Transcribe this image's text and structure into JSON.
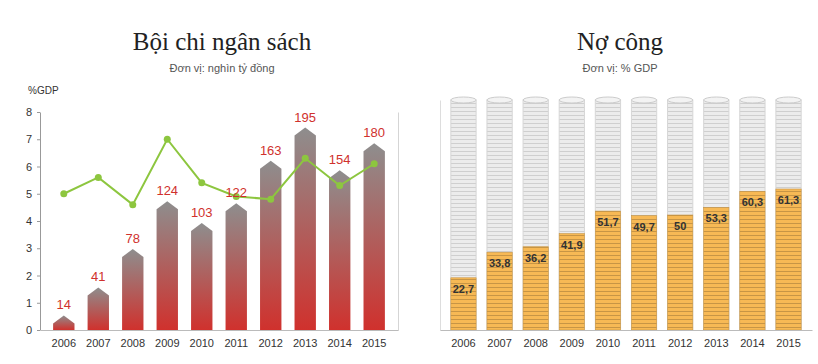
{
  "chart_data": [
    {
      "type": "bar",
      "title": "Bội chi ngân sách",
      "subtitle": "Đơn vị: nghìn tỷ đồng",
      "y_label": "%GDP",
      "categories": [
        "2006",
        "2007",
        "2008",
        "2009",
        "2010",
        "2011",
        "2012",
        "2013",
        "2014",
        "2015"
      ],
      "ylim": [
        0,
        8
      ],
      "yticks": [
        0,
        1,
        2,
        3,
        4,
        5,
        6,
        7,
        8
      ],
      "y2lim": [
        0,
        210
      ],
      "grid": false,
      "series": [
        {
          "type": "bar",
          "axis": "y2",
          "color": "#d0312d",
          "data_labels": true,
          "values": [
            14,
            41,
            78,
            124,
            103,
            122,
            163,
            195,
            154,
            180
          ]
        },
        {
          "type": "line",
          "color": "#8dc63f",
          "marker": "circle",
          "line_style": "solid",
          "values": [
            5.0,
            5.6,
            4.6,
            7.0,
            5.4,
            4.9,
            4.8,
            6.3,
            5.3,
            6.1
          ]
        }
      ]
    },
    {
      "type": "bar",
      "title": "Nợ công",
      "subtitle": "Đơn vị: % GDP",
      "categories": [
        "2006",
        "2007",
        "2008",
        "2009",
        "2010",
        "2011",
        "2012",
        "2013",
        "2014",
        "2015"
      ],
      "values": [
        22.7,
        33.8,
        36.2,
        41.9,
        51.7,
        49.7,
        50,
        53.3,
        60.3,
        61.3
      ],
      "value_labels": [
        "22,7",
        "33,8",
        "36,2",
        "41,9",
        "51,7",
        "49,7",
        "50",
        "53,3",
        "60,3",
        "61,3"
      ],
      "color": "#f7b955",
      "ylim": [
        0,
        100
      ],
      "data_labels": true,
      "tick_labels": "x",
      "grid": false
    }
  ]
}
